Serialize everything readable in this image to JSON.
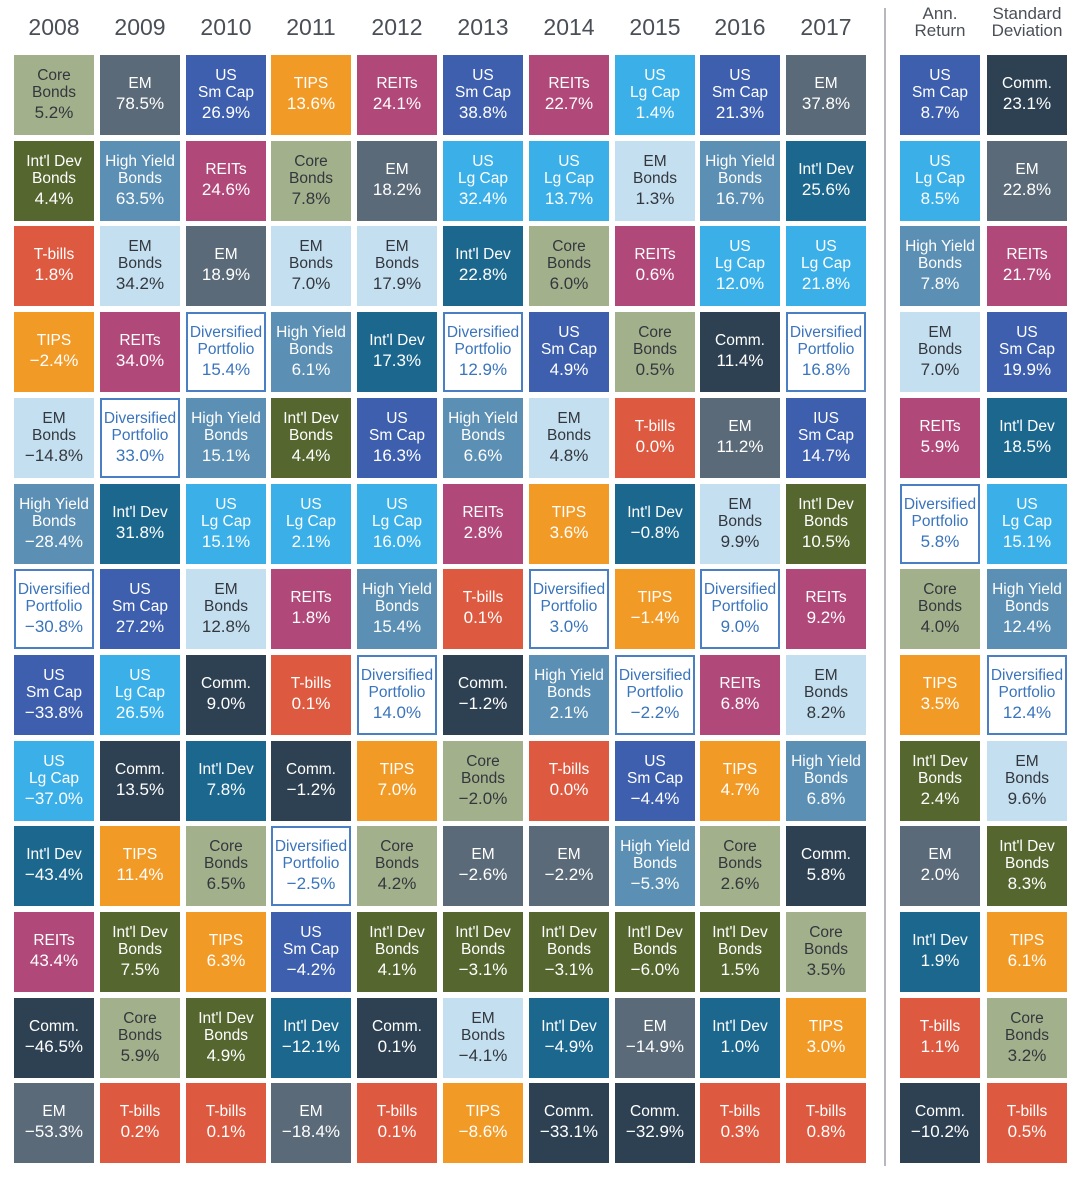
{
  "chart_data": {
    "type": "table",
    "title": "",
    "columns": [
      "2008",
      "2009",
      "2010",
      "2011",
      "2012",
      "2013",
      "2014",
      "2015",
      "2016",
      "2017"
    ],
    "stat_columns": [
      "Ann.\nReturn",
      "Standard\nDeviation"
    ],
    "legend_colors": {
      "Core Bonds": "#a3b08c",
      "EM": "#5b6a78",
      "US Sm Cap": "#3d5fae",
      "TIPS": "#f29a26",
      "REITs": "#b1487a",
      "US Lg Cap": "#3bb0e8",
      "Int'l Dev": "#1b678e",
      "Int'l Dev Bonds": "#55672f",
      "High Yield Bonds": "#5b8fb4",
      "T-bills": "#dd5a40",
      "EM Bonds": "#c4dff0",
      "Comm.": "#2e4152",
      "Diversified Portfolio": "#ffffff",
      "IUS Sm Cap": "#3d5fae"
    },
    "years": [
      {
        "year": "2008",
        "cells": [
          {
            "asset": "Core\nBonds",
            "value": "5.2%"
          },
          {
            "asset": "Int'l Dev\nBonds",
            "value": "4.4%"
          },
          {
            "asset": "T-bills",
            "value": "1.8%"
          },
          {
            "asset": "TIPS",
            "value": "−2.4%"
          },
          {
            "asset": "EM\nBonds",
            "value": "−14.8%"
          },
          {
            "asset": "High Yield\nBonds",
            "value": "−28.4%"
          },
          {
            "asset": "Diversified\nPortfolio",
            "value": "−30.8%"
          },
          {
            "asset": "US\nSm Cap",
            "value": "−33.8%"
          },
          {
            "asset": "US\nLg Cap",
            "value": "−37.0%"
          },
          {
            "asset": "Int'l Dev",
            "value": "−43.4%"
          },
          {
            "asset": "REITs",
            "value": "43.4%"
          },
          {
            "asset": "Comm.",
            "value": "−46.5%"
          },
          {
            "asset": "EM",
            "value": "−53.3%"
          }
        ]
      },
      {
        "year": "2009",
        "cells": [
          {
            "asset": "EM",
            "value": "78.5%"
          },
          {
            "asset": "High Yield\nBonds",
            "value": "63.5%"
          },
          {
            "asset": "EM\nBonds",
            "value": "34.2%"
          },
          {
            "asset": "REITs",
            "value": "34.0%"
          },
          {
            "asset": "Diversified\nPortfolio",
            "value": "33.0%"
          },
          {
            "asset": "Int'l Dev",
            "value": "31.8%"
          },
          {
            "asset": "US\nSm Cap",
            "value": "27.2%"
          },
          {
            "asset": "US\nLg Cap",
            "value": "26.5%"
          },
          {
            "asset": "Comm.",
            "value": "13.5%"
          },
          {
            "asset": "TIPS",
            "value": "11.4%"
          },
          {
            "asset": "Int'l Dev\nBonds",
            "value": "7.5%"
          },
          {
            "asset": "Core\nBonds",
            "value": "5.9%"
          },
          {
            "asset": "T-bills",
            "value": "0.2%"
          }
        ]
      },
      {
        "year": "2010",
        "cells": [
          {
            "asset": "US\nSm Cap",
            "value": "26.9%"
          },
          {
            "asset": "REITs",
            "value": "24.6%"
          },
          {
            "asset": "EM",
            "value": "18.9%"
          },
          {
            "asset": "Diversified\nPortfolio",
            "value": "15.4%"
          },
          {
            "asset": "High Yield\nBonds",
            "value": "15.1%"
          },
          {
            "asset": "US\nLg Cap",
            "value": "15.1%"
          },
          {
            "asset": "EM\nBonds",
            "value": "12.8%"
          },
          {
            "asset": "Comm.",
            "value": "9.0%"
          },
          {
            "asset": "Int'l Dev",
            "value": "7.8%"
          },
          {
            "asset": "Core\nBonds",
            "value": "6.5%"
          },
          {
            "asset": "TIPS",
            "value": "6.3%"
          },
          {
            "asset": "Int'l Dev\nBonds",
            "value": "4.9%"
          },
          {
            "asset": "T-bills",
            "value": "0.1%"
          }
        ]
      },
      {
        "year": "2011",
        "cells": [
          {
            "asset": "TIPS",
            "value": "13.6%"
          },
          {
            "asset": "Core\nBonds",
            "value": "7.8%"
          },
          {
            "asset": "EM\nBonds",
            "value": "7.0%"
          },
          {
            "asset": "High Yield\nBonds",
            "value": "6.1%"
          },
          {
            "asset": "Int'l Dev\nBonds",
            "value": "4.4%"
          },
          {
            "asset": "US\nLg Cap",
            "value": "2.1%"
          },
          {
            "asset": "REITs",
            "value": "1.8%"
          },
          {
            "asset": "T-bills",
            "value": "0.1%"
          },
          {
            "asset": "Comm.",
            "value": "−1.2%"
          },
          {
            "asset": "Diversified\nPortfolio",
            "value": "−2.5%"
          },
          {
            "asset": "US\nSm Cap",
            "value": "−4.2%"
          },
          {
            "asset": "Int'l Dev",
            "value": "−12.1%"
          },
          {
            "asset": "EM",
            "value": "−18.4%"
          }
        ]
      },
      {
        "year": "2012",
        "cells": [
          {
            "asset": "REITs",
            "value": "24.1%"
          },
          {
            "asset": "EM",
            "value": "18.2%"
          },
          {
            "asset": "EM\nBonds",
            "value": "17.9%"
          },
          {
            "asset": "Int'l Dev",
            "value": "17.3%"
          },
          {
            "asset": "US\nSm Cap",
            "value": "16.3%"
          },
          {
            "asset": "US\nLg Cap",
            "value": "16.0%"
          },
          {
            "asset": "High Yield\nBonds",
            "value": "15.4%"
          },
          {
            "asset": "Diversified\nPortfolio",
            "value": "14.0%"
          },
          {
            "asset": "TIPS",
            "value": "7.0%"
          },
          {
            "asset": "Core\nBonds",
            "value": "4.2%"
          },
          {
            "asset": "Int'l Dev\nBonds",
            "value": "4.1%"
          },
          {
            "asset": "Comm.",
            "value": "0.1%"
          },
          {
            "asset": "T-bills",
            "value": "0.1%"
          }
        ]
      },
      {
        "year": "2013",
        "cells": [
          {
            "asset": "US\nSm Cap",
            "value": "38.8%"
          },
          {
            "asset": "US\nLg Cap",
            "value": "32.4%"
          },
          {
            "asset": "Int'l Dev",
            "value": "22.8%"
          },
          {
            "asset": "Diversified\nPortfolio",
            "value": "12.9%"
          },
          {
            "asset": "High Yield\nBonds",
            "value": "6.6%"
          },
          {
            "asset": "REITs",
            "value": "2.8%"
          },
          {
            "asset": "T-bills",
            "value": "0.1%"
          },
          {
            "asset": "Comm.",
            "value": "−1.2%"
          },
          {
            "asset": "Core\nBonds",
            "value": "−2.0%"
          },
          {
            "asset": "EM",
            "value": "−2.6%"
          },
          {
            "asset": "Int'l Dev\nBonds",
            "value": "−3.1%"
          },
          {
            "asset": "EM\nBonds",
            "value": "−4.1%"
          },
          {
            "asset": "TIPS",
            "value": "−8.6%"
          }
        ]
      },
      {
        "year": "2014",
        "cells": [
          {
            "asset": "REITs",
            "value": "22.7%"
          },
          {
            "asset": "US\nLg Cap",
            "value": "13.7%"
          },
          {
            "asset": "Core\nBonds",
            "value": "6.0%"
          },
          {
            "asset": "US\nSm Cap",
            "value": "4.9%"
          },
          {
            "asset": "EM\nBonds",
            "value": "4.8%"
          },
          {
            "asset": "TIPS",
            "value": "3.6%"
          },
          {
            "asset": "Diversified\nPortfolio",
            "value": "3.0%"
          },
          {
            "asset": "High Yield\nBonds",
            "value": "2.1%"
          },
          {
            "asset": "T-bills",
            "value": "0.0%"
          },
          {
            "asset": "EM",
            "value": "−2.2%"
          },
          {
            "asset": "Int'l Dev\nBonds",
            "value": "−3.1%"
          },
          {
            "asset": "Int'l Dev",
            "value": "−4.9%"
          },
          {
            "asset": "Comm.",
            "value": "−33.1%"
          }
        ]
      },
      {
        "year": "2015",
        "cells": [
          {
            "asset": "US\nLg Cap",
            "value": "1.4%"
          },
          {
            "asset": "EM\nBonds",
            "value": "1.3%"
          },
          {
            "asset": "REITs",
            "value": "0.6%"
          },
          {
            "asset": "Core\nBonds",
            "value": "0.5%"
          },
          {
            "asset": "T-bills",
            "value": "0.0%"
          },
          {
            "asset": "Int'l Dev",
            "value": "−0.8%"
          },
          {
            "asset": "TIPS",
            "value": "−1.4%"
          },
          {
            "asset": "Diversified\nPortfolio",
            "value": "−2.2%"
          },
          {
            "asset": "US\nSm Cap",
            "value": "−4.4%"
          },
          {
            "asset": "High Yield\nBonds",
            "value": "−5.3%"
          },
          {
            "asset": "Int'l Dev\nBonds",
            "value": "−6.0%"
          },
          {
            "asset": "EM",
            "value": "−14.9%"
          },
          {
            "asset": "Comm.",
            "value": "−32.9%"
          }
        ]
      },
      {
        "year": "2016",
        "cells": [
          {
            "asset": "US\nSm Cap",
            "value": "21.3%"
          },
          {
            "asset": "High Yield\nBonds",
            "value": "16.7%"
          },
          {
            "asset": "US\nLg Cap",
            "value": "12.0%"
          },
          {
            "asset": "Comm.",
            "value": "11.4%"
          },
          {
            "asset": "EM",
            "value": "11.2%"
          },
          {
            "asset": "EM\nBonds",
            "value": "9.9%"
          },
          {
            "asset": "Diversified\nPortfolio",
            "value": "9.0%"
          },
          {
            "asset": "REITs",
            "value": "6.8%"
          },
          {
            "asset": "TIPS",
            "value": "4.7%"
          },
          {
            "asset": "Core\nBonds",
            "value": "2.6%"
          },
          {
            "asset": "Int'l Dev\nBonds",
            "value": "1.5%"
          },
          {
            "asset": "Int'l Dev",
            "value": "1.0%"
          },
          {
            "asset": "T-bills",
            "value": "0.3%"
          }
        ]
      },
      {
        "year": "2017",
        "cells": [
          {
            "asset": "EM",
            "value": "37.8%"
          },
          {
            "asset": "Int'l Dev",
            "value": "25.6%"
          },
          {
            "asset": "US\nLg Cap",
            "value": "21.8%"
          },
          {
            "asset": "Diversified\nPortfolio",
            "value": "16.8%"
          },
          {
            "asset": "IUS\nSm Cap",
            "value": "14.7%"
          },
          {
            "asset": "Int'l Dev\nBonds",
            "value": "10.5%"
          },
          {
            "asset": "REITs",
            "value": "9.2%"
          },
          {
            "asset": "EM\nBonds",
            "value": "8.2%"
          },
          {
            "asset": "High Yield\nBonds",
            "value": "6.8%"
          },
          {
            "asset": "Comm.",
            "value": "5.8%"
          },
          {
            "asset": "Core\nBonds",
            "value": "3.5%"
          },
          {
            "asset": "TIPS",
            "value": "3.0%"
          },
          {
            "asset": "T-bills",
            "value": "0.8%"
          }
        ]
      }
    ],
    "stats": [
      {
        "header": "Ann.\nReturn",
        "cells": [
          {
            "asset": "US\nSm Cap",
            "value": "8.7%"
          },
          {
            "asset": "US\nLg Cap",
            "value": "8.5%"
          },
          {
            "asset": "High Yield\nBonds",
            "value": "7.8%"
          },
          {
            "asset": "EM\nBonds",
            "value": "7.0%"
          },
          {
            "asset": "REITs",
            "value": "5.9%"
          },
          {
            "asset": "Diversified\nPortfolio",
            "value": "5.8%"
          },
          {
            "asset": "Core\nBonds",
            "value": "4.0%"
          },
          {
            "asset": "TIPS",
            "value": "3.5%"
          },
          {
            "asset": "Int'l Dev\nBonds",
            "value": "2.4%"
          },
          {
            "asset": "EM",
            "value": "2.0%"
          },
          {
            "asset": "Int'l Dev",
            "value": "1.9%"
          },
          {
            "asset": "T-bills",
            "value": "1.1%"
          },
          {
            "asset": "Comm.",
            "value": "−10.2%"
          }
        ]
      },
      {
        "header": "Standard\nDeviation",
        "cells": [
          {
            "asset": "Comm.",
            "value": "23.1%"
          },
          {
            "asset": "EM",
            "value": "22.8%"
          },
          {
            "asset": "REITs",
            "value": "21.7%"
          },
          {
            "asset": "US\nSm Cap",
            "value": "19.9%"
          },
          {
            "asset": "Int'l Dev",
            "value": "18.5%"
          },
          {
            "asset": "US\nLg Cap",
            "value": "15.1%"
          },
          {
            "asset": "High Yield\nBonds",
            "value": "12.4%"
          },
          {
            "asset": "Diversified\nPortfolio",
            "value": "12.4%"
          },
          {
            "asset": "EM\nBonds",
            "value": "9.6%"
          },
          {
            "asset": "Int'l Dev\nBonds",
            "value": "8.3%"
          },
          {
            "asset": "TIPS",
            "value": "6.1%"
          },
          {
            "asset": "Core\nBonds",
            "value": "3.2%"
          },
          {
            "asset": "T-bills",
            "value": "0.5%"
          }
        ]
      }
    ]
  }
}
